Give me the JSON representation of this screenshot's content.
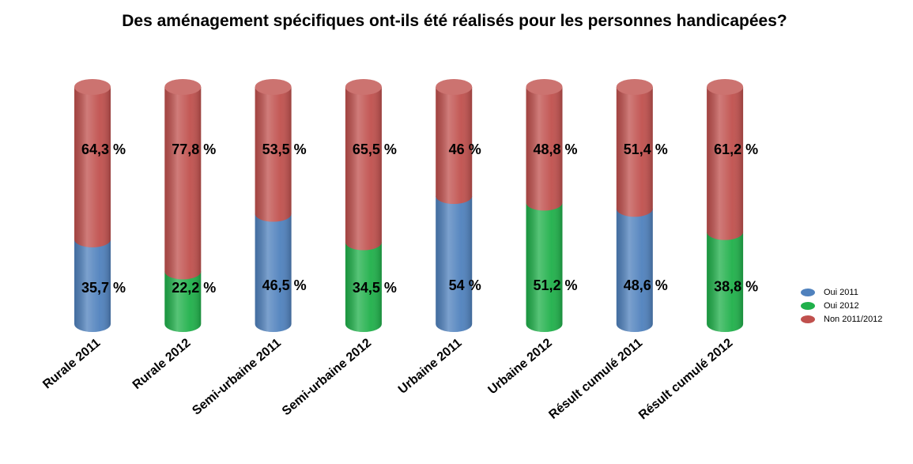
{
  "chart_data": {
    "type": "stacked-cylinder",
    "title": "Des aménagement spécifiques ont-ils été réalisés pour les personnes handicapées?",
    "categories": [
      "Rurale 2011",
      "Rurale 2012",
      "Semi-urbaine 2011",
      "Semi-urbaine 2012",
      "Urbaine 2011",
      "Urbaine 2012",
      "Résult cumulé 2011",
      "Résult cumulé 2012"
    ],
    "ylim": [
      0,
      100
    ],
    "series": [
      {
        "name": "Oui 2011",
        "color": "#4f81bd",
        "values": [
          35.7,
          null,
          46.5,
          null,
          54,
          null,
          48.6,
          null
        ],
        "value_labels": [
          "35,7 %",
          null,
          "46,5 %",
          null,
          "54 %",
          null,
          "48,6 %",
          null
        ]
      },
      {
        "name": "Oui 2012",
        "color": "#1fb04a",
        "values": [
          null,
          22.2,
          null,
          34.5,
          null,
          51.2,
          null,
          38.8
        ],
        "value_labels": [
          null,
          "22,2 %",
          null,
          "34,5 %",
          null,
          "51,2 %",
          null,
          "38,8 %"
        ]
      },
      {
        "name": "Non 2011/2012",
        "color": "#c0504d",
        "values": [
          64.3,
          77.8,
          53.5,
          65.5,
          46,
          48.8,
          51.4,
          61.2
        ],
        "value_labels": [
          "64,3 %",
          "77,8 %",
          "53,5 %",
          "65,5 %",
          "46 %",
          "48,8 %",
          "51,4 %",
          "61,2 %"
        ]
      }
    ],
    "legend": "right"
  }
}
